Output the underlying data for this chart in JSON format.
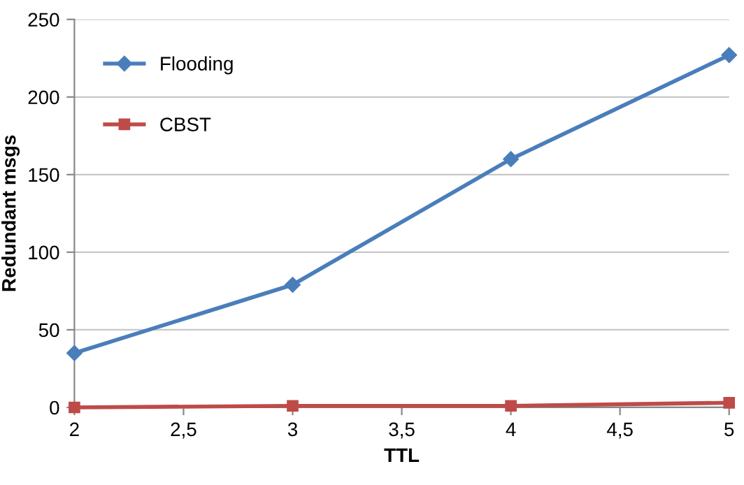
{
  "chart_data": {
    "type": "line",
    "xlabel": "TTL",
    "ylabel": "Redundant msgs",
    "x": [
      2,
      3,
      4,
      5
    ],
    "series": [
      {
        "name": "Flooding",
        "color": "#4a7ebb",
        "values": [
          35,
          79,
          160,
          227
        ],
        "marker": "diamond"
      },
      {
        "name": "CBST",
        "color": "#be4b48",
        "values": [
          0,
          1,
          1,
          3
        ],
        "marker": "square"
      }
    ],
    "xlim": [
      2,
      5
    ],
    "xticks": [
      2,
      {
        "value": 2.5,
        "label": "2,5"
      },
      3,
      {
        "value": 3.5,
        "label": "3,5"
      },
      4,
      {
        "value": 4.5,
        "label": "4,5"
      },
      5
    ],
    "ylim": [
      0,
      250
    ],
    "yticks": [
      0,
      50,
      100,
      150,
      200,
      250
    ],
    "grid": "y",
    "legend": "top left",
    "line_style": "solid"
  }
}
